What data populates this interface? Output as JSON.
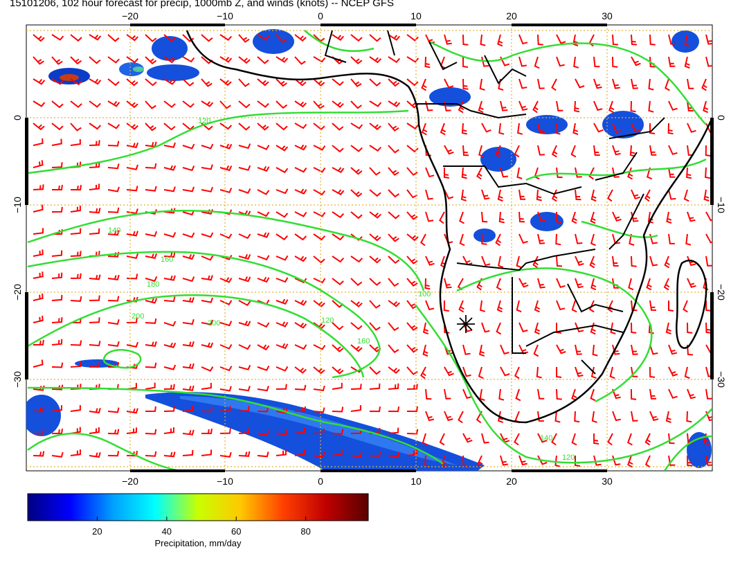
{
  "title": "15101206, 102 hour forecast for precip, 1000mb Z, and winds (knots) -- NCEP GFS",
  "map": {
    "lon_ticks": [
      -20,
      -10,
      0,
      10,
      20,
      30
    ],
    "lon_tick_labels": [
      "−20",
      "−10",
      "0",
      "10",
      "20",
      "30"
    ],
    "lat_ticks": [
      0,
      -10,
      -20,
      -30
    ],
    "lat_tick_labels": [
      "0",
      "−10",
      "−20",
      "−30"
    ],
    "lon_range": [
      -31,
      41
    ],
    "lat_range": [
      -40,
      11
    ],
    "contour_labels": [
      "120",
      "140",
      "160",
      "180",
      "200",
      "120",
      "160",
      "100",
      "140",
      "120",
      "200"
    ],
    "station_marker": "asterisk-marker"
  },
  "colorbar": {
    "ticks": [
      20,
      40,
      60,
      80
    ],
    "tick_labels": [
      "20",
      "40",
      "60",
      "80"
    ],
    "label": "Precipitation, mm/day",
    "range": [
      0,
      98
    ],
    "colors": [
      "#000080",
      "#0000ff",
      "#00a0ff",
      "#00ffff",
      "#c8ff00",
      "#ffc800",
      "#ff4000",
      "#c00000",
      "#580000"
    ]
  },
  "style": {
    "wind_barb_color": "#ff0000",
    "contour_color": "#33dd33",
    "grid_color": "#e0b030",
    "coast_color": "#000000"
  }
}
